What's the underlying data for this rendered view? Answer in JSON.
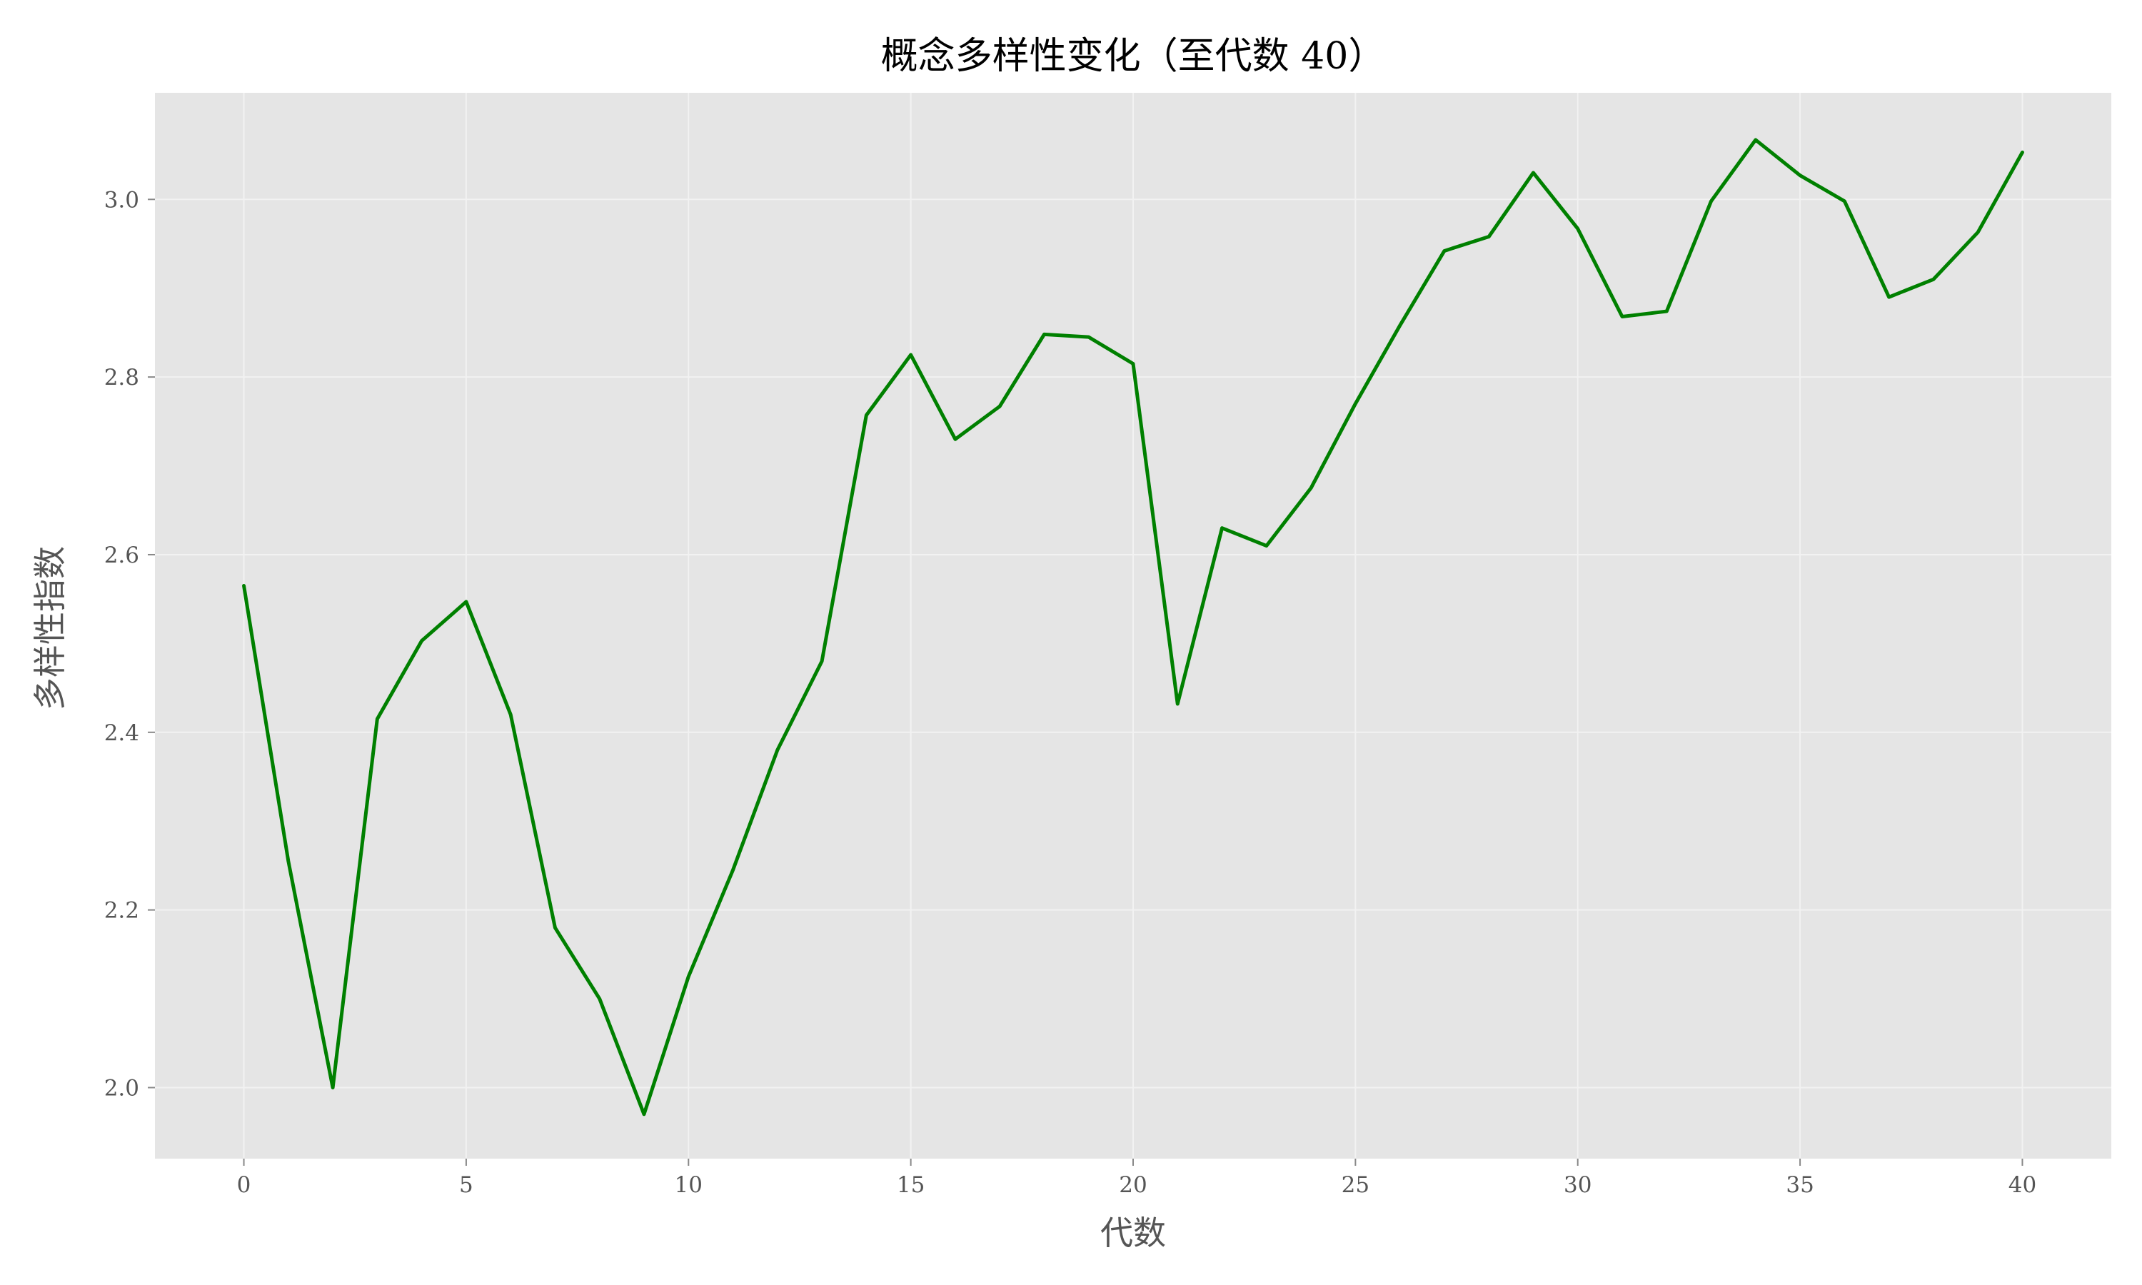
{
  "chart_data": {
    "type": "line",
    "title": "概念多样性变化（至代数 40）",
    "xlabel": "代数",
    "ylabel": "多样性指数",
    "x": [
      0,
      1,
      2,
      3,
      4,
      5,
      6,
      7,
      8,
      9,
      10,
      11,
      12,
      13,
      14,
      15,
      16,
      17,
      18,
      19,
      20,
      21,
      22,
      23,
      24,
      25,
      26,
      27,
      28,
      29,
      30,
      31,
      32,
      33,
      34,
      35,
      36,
      37,
      38,
      39,
      40
    ],
    "series": [
      {
        "values": [
          2.565,
          2.255,
          2.0,
          2.415,
          2.503,
          2.547,
          2.42,
          2.18,
          2.1,
          1.97,
          2.125,
          2.245,
          2.38,
          2.48,
          2.757,
          2.825,
          2.73,
          2.767,
          2.848,
          2.845,
          2.815,
          2.432,
          2.63,
          2.61,
          2.675,
          2.77,
          2.858,
          2.942,
          2.958,
          3.03,
          2.967,
          2.868,
          2.874,
          2.998,
          3.067,
          3.027,
          2.998,
          2.89,
          2.91,
          2.963,
          3.053
        ],
        "color": "#008000"
      }
    ],
    "xlim": [
      -2,
      42
    ],
    "ylim": [
      1.92,
      3.12
    ],
    "xticks": [
      0,
      5,
      10,
      15,
      20,
      25,
      30,
      35,
      40
    ],
    "xtick_labels": [
      "0",
      "5",
      "10",
      "15",
      "20",
      "25",
      "30",
      "35",
      "40"
    ],
    "yticks": [
      2.0,
      2.2,
      2.4,
      2.6,
      2.8,
      3.0
    ],
    "ytick_labels": [
      "2.0",
      "2.2",
      "2.4",
      "2.6",
      "2.8",
      "3.0"
    ],
    "grid": true,
    "legend": "none",
    "colors": {
      "panel_background": "#e5e5e5",
      "grid": "#f2f2f2",
      "line": "#008000",
      "tick_text": "#555555",
      "title_text": "#000000"
    }
  }
}
